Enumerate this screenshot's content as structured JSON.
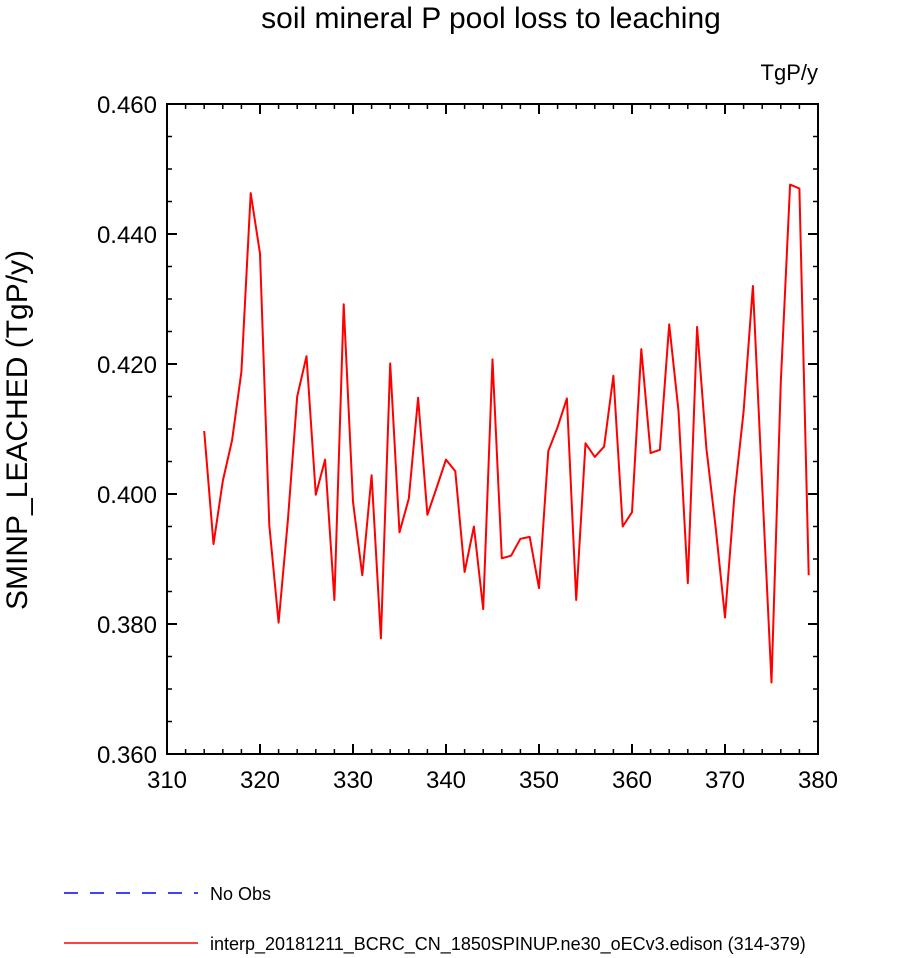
{
  "chart_data": {
    "type": "line",
    "title": "soil mineral P pool loss to leaching",
    "units": "TgP/y",
    "xlabel": "",
    "ylabel": "SMINP_LEACHED  (TgP/y)",
    "xlim": [
      310,
      380
    ],
    "ylim": [
      0.36,
      0.46
    ],
    "xticks": [
      310,
      320,
      330,
      340,
      350,
      360,
      370,
      380
    ],
    "xtick_labels": [
      "310",
      "320",
      "330",
      "340",
      "350",
      "360",
      "370",
      "380"
    ],
    "yticks": [
      0.36,
      0.38,
      0.4,
      0.42,
      0.44,
      0.46
    ],
    "ytick_labels": [
      "0.360",
      "0.380",
      "0.400",
      "0.420",
      "0.440",
      "0.460"
    ],
    "grid": false,
    "series": [
      {
        "name": "interp_20181211_BCRC_CN_1850SPINUP.ne30_oECv3.edison (314-379)",
        "color": "#ff0000",
        "dash": "solid",
        "x": [
          314,
          315,
          316,
          317,
          318,
          319,
          320,
          321,
          322,
          323,
          324,
          325,
          326,
          327,
          328,
          329,
          330,
          331,
          332,
          333,
          334,
          335,
          336,
          337,
          338,
          339,
          340,
          341,
          342,
          343,
          344,
          345,
          346,
          347,
          348,
          349,
          350,
          351,
          352,
          353,
          354,
          355,
          356,
          357,
          358,
          359,
          360,
          361,
          362,
          363,
          364,
          365,
          366,
          367,
          368,
          369,
          370,
          371,
          372,
          373,
          374,
          375,
          376,
          377,
          378,
          379
        ],
        "values": [
          0.4097,
          0.3923,
          0.402,
          0.4083,
          0.4188,
          0.4463,
          0.437,
          0.3952,
          0.3802,
          0.396,
          0.415,
          0.4212,
          0.3999,
          0.4053,
          0.3837,
          0.4292,
          0.3988,
          0.3875,
          0.4029,
          0.3778,
          0.4201,
          0.3941,
          0.3993,
          0.4148,
          0.3968,
          0.401,
          0.4053,
          0.4035,
          0.388,
          0.395,
          0.3823,
          0.4207,
          0.3901,
          0.3905,
          0.3931,
          0.3934,
          0.3855,
          0.4066,
          0.4103,
          0.4147,
          0.3837,
          0.4078,
          0.4057,
          0.4073,
          0.4182,
          0.395,
          0.3972,
          0.4223,
          0.4063,
          0.4068,
          0.4261,
          0.4128,
          0.3863,
          0.4257,
          0.407,
          0.3948,
          0.381,
          0.3995,
          0.4127,
          0.432,
          0.4012,
          0.371,
          0.4172,
          0.4476,
          0.447,
          0.3875
        ]
      },
      {
        "name": "No Obs",
        "color": "#0000ff",
        "dash": "dashed",
        "x": [],
        "values": []
      }
    ],
    "legend_position": "bottom-left"
  }
}
